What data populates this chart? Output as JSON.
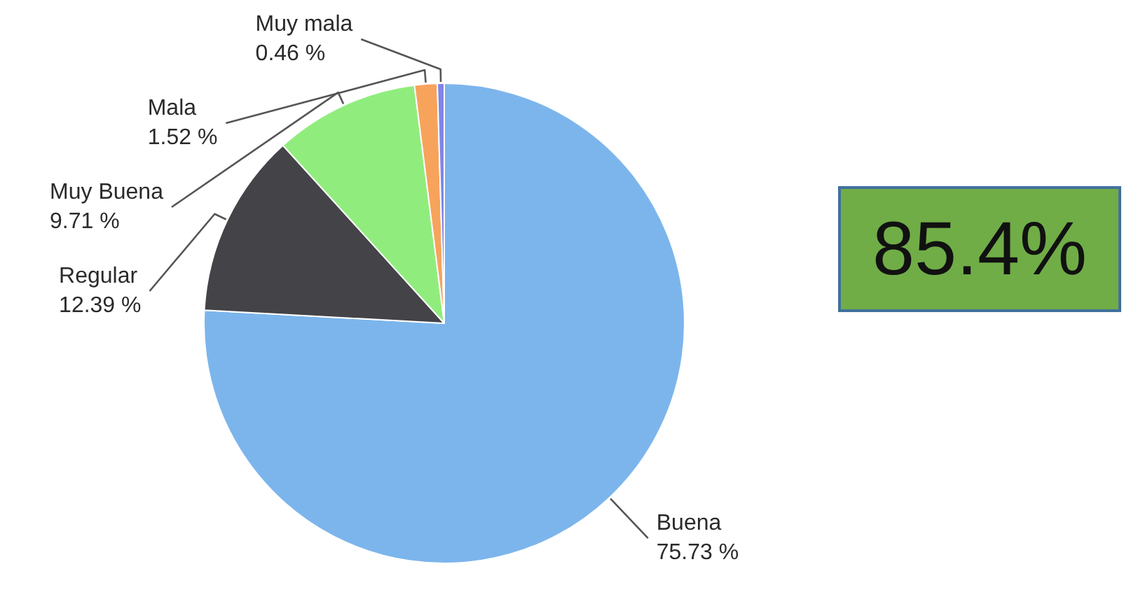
{
  "chart_data": {
    "type": "pie",
    "categories": [
      "Buena",
      "Regular",
      "Muy Buena",
      "Mala",
      "Muy mala"
    ],
    "values": [
      75.73,
      12.39,
      9.71,
      1.52,
      0.46
    ],
    "colors": [
      "#7cb5ec",
      "#434348",
      "#90ed7d",
      "#f7a35c",
      "#8085e9"
    ],
    "value_labels": [
      "75.73 %",
      "12.39 %",
      "9.71 %",
      "1.52 %",
      "0.46 %"
    ],
    "annotations": [
      "85.4%"
    ]
  }
}
